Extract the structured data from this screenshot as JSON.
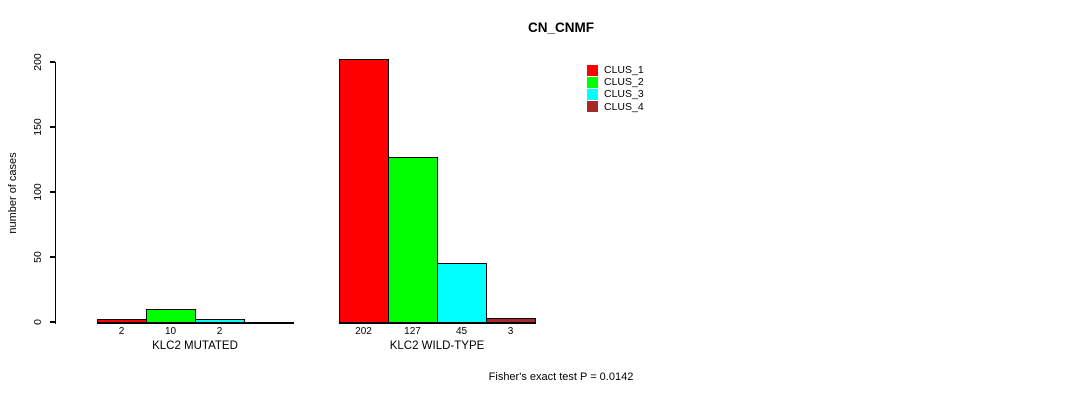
{
  "chart_data": {
    "type": "bar",
    "title": "CN_CNMF",
    "ylabel": "number of cases",
    "xlabel": "",
    "ylim": [
      0,
      200
    ],
    "yticks": [
      0,
      50,
      100,
      150,
      200
    ],
    "grid": false,
    "legend_position": "top-right",
    "legend": [
      {
        "label": "CLUS_1",
        "color": "#ff0000"
      },
      {
        "label": "CLUS_2",
        "color": "#00ff00"
      },
      {
        "label": "CLUS_3",
        "color": "#00ffff"
      },
      {
        "label": "CLUS_4",
        "color": "#a52a2a"
      }
    ],
    "groups": [
      {
        "label": "KLC2 MUTATED",
        "bars": [
          {
            "cluster": "CLUS_1",
            "value": 2,
            "value_label": "2",
            "color": "#ff0000"
          },
          {
            "cluster": "CLUS_2",
            "value": 10,
            "value_label": "10",
            "color": "#00ff00"
          },
          {
            "cluster": "CLUS_3",
            "value": 2,
            "value_label": "2",
            "color": "#00ffff"
          },
          {
            "cluster": "CLUS_4",
            "value": 0,
            "value_label": "",
            "color": "#a52a2a"
          }
        ]
      },
      {
        "label": "KLC2 WILD-TYPE",
        "bars": [
          {
            "cluster": "CLUS_1",
            "value": 202,
            "value_label": "202",
            "color": "#ff0000"
          },
          {
            "cluster": "CLUS_2",
            "value": 127,
            "value_label": "127",
            "color": "#00ff00"
          },
          {
            "cluster": "CLUS_3",
            "value": 45,
            "value_label": "45",
            "color": "#00ffff"
          },
          {
            "cluster": "CLUS_4",
            "value": 3,
            "value_label": "3",
            "color": "#a52a2a"
          }
        ]
      }
    ],
    "footnote": "Fisher's exact test P = 0.0142"
  }
}
